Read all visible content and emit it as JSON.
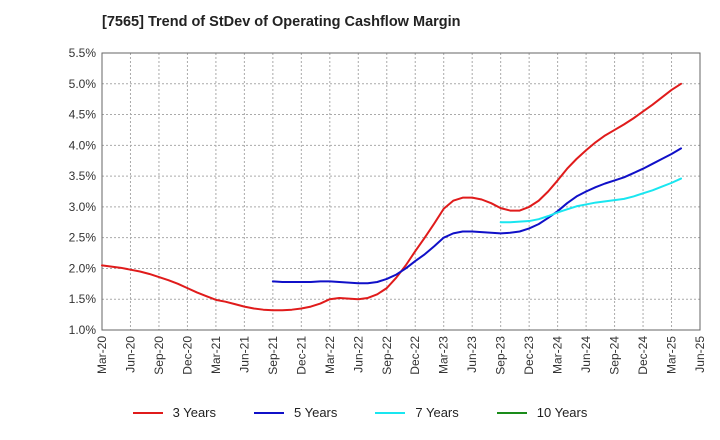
{
  "chart_data": {
    "type": "line",
    "title": "[7565]  Trend of StDev of Operating Cashflow Margin",
    "xlabel": "",
    "ylabel": "",
    "grid": true,
    "legend_position": "bottom",
    "x_tick_labels": [
      "Mar-20",
      "Jun-20",
      "Sep-20",
      "Dec-20",
      "Mar-21",
      "Jun-21",
      "Sep-21",
      "Dec-21",
      "Mar-22",
      "Jun-22",
      "Sep-22",
      "Dec-22",
      "Mar-23",
      "Jun-23",
      "Sep-23",
      "Dec-23",
      "Mar-24",
      "Jun-24",
      "Sep-24",
      "Dec-24",
      "Mar-25",
      "Jun-25"
    ],
    "y_tick_labels": [
      "1.0%",
      "1.5%",
      "2.0%",
      "2.5%",
      "3.0%",
      "3.5%",
      "4.0%",
      "4.5%",
      "5.0%",
      "5.5%"
    ],
    "ylim": [
      1.0,
      5.5
    ],
    "y_ticks": [
      1.0,
      1.5,
      2.0,
      2.5,
      3.0,
      3.5,
      4.0,
      4.5,
      5.0,
      5.5
    ],
    "series": [
      {
        "name": "3 Years",
        "color": "#e01b1b",
        "points": [
          [
            "Mar-20",
            2.05
          ],
          [
            "Apr-20",
            2.03
          ],
          [
            "May-20",
            2.01
          ],
          [
            "Jun-20",
            1.98
          ],
          [
            "Jul-20",
            1.95
          ],
          [
            "Aug-20",
            1.91
          ],
          [
            "Sep-20",
            1.86
          ],
          [
            "Oct-20",
            1.81
          ],
          [
            "Nov-20",
            1.75
          ],
          [
            "Dec-20",
            1.68
          ],
          [
            "Jan-21",
            1.61
          ],
          [
            "Feb-21",
            1.55
          ],
          [
            "Mar-21",
            1.49
          ],
          [
            "Apr-21",
            1.46
          ],
          [
            "May-21",
            1.42
          ],
          [
            "Jun-21",
            1.38
          ],
          [
            "Jul-21",
            1.35
          ],
          [
            "Aug-21",
            1.33
          ],
          [
            "Sep-21",
            1.32
          ],
          [
            "Oct-21",
            1.32
          ],
          [
            "Nov-21",
            1.33
          ],
          [
            "Dec-21",
            1.35
          ],
          [
            "Jan-22",
            1.38
          ],
          [
            "Feb-22",
            1.43
          ],
          [
            "Mar-22",
            1.5
          ],
          [
            "Apr-22",
            1.52
          ],
          [
            "May-22",
            1.51
          ],
          [
            "Jun-22",
            1.5
          ],
          [
            "Jul-22",
            1.52
          ],
          [
            "Aug-22",
            1.58
          ],
          [
            "Sep-22",
            1.68
          ],
          [
            "Oct-22",
            1.85
          ],
          [
            "Nov-22",
            2.05
          ],
          [
            "Dec-22",
            2.28
          ],
          [
            "Jan-23",
            2.5
          ],
          [
            "Feb-23",
            2.73
          ],
          [
            "Mar-23",
            2.97
          ],
          [
            "Apr-23",
            3.1
          ],
          [
            "May-23",
            3.15
          ],
          [
            "Jun-23",
            3.15
          ],
          [
            "Jul-23",
            3.12
          ],
          [
            "Aug-23",
            3.06
          ],
          [
            "Sep-23",
            2.98
          ],
          [
            "Oct-23",
            2.94
          ],
          [
            "Nov-23",
            2.94
          ],
          [
            "Dec-23",
            3.0
          ],
          [
            "Jan-24",
            3.1
          ],
          [
            "Feb-24",
            3.25
          ],
          [
            "Mar-24",
            3.43
          ],
          [
            "Apr-24",
            3.62
          ],
          [
            "May-24",
            3.78
          ],
          [
            "Jun-24",
            3.92
          ],
          [
            "Jul-24",
            4.05
          ],
          [
            "Aug-24",
            4.16
          ],
          [
            "Sep-24",
            4.25
          ],
          [
            "Oct-24",
            4.34
          ],
          [
            "Nov-24",
            4.44
          ],
          [
            "Dec-24",
            4.55
          ],
          [
            "Jan-25",
            4.66
          ],
          [
            "Feb-25",
            4.78
          ],
          [
            "Mar-25",
            4.9
          ],
          [
            "Apr-25",
            5.0
          ]
        ]
      },
      {
        "name": "5 Years",
        "color": "#1010c8",
        "points": [
          [
            "Sep-21",
            1.79
          ],
          [
            "Oct-21",
            1.78
          ],
          [
            "Nov-21",
            1.78
          ],
          [
            "Dec-21",
            1.78
          ],
          [
            "Jan-22",
            1.78
          ],
          [
            "Feb-22",
            1.79
          ],
          [
            "Mar-22",
            1.79
          ],
          [
            "Apr-22",
            1.78
          ],
          [
            "May-22",
            1.77
          ],
          [
            "Jun-22",
            1.76
          ],
          [
            "Jul-22",
            1.76
          ],
          [
            "Aug-22",
            1.78
          ],
          [
            "Sep-22",
            1.83
          ],
          [
            "Oct-22",
            1.9
          ],
          [
            "Nov-22",
            2.0
          ],
          [
            "Dec-22",
            2.12
          ],
          [
            "Jan-23",
            2.23
          ],
          [
            "Feb-23",
            2.36
          ],
          [
            "Mar-23",
            2.5
          ],
          [
            "Apr-23",
            2.57
          ],
          [
            "May-23",
            2.6
          ],
          [
            "Jun-23",
            2.6
          ],
          [
            "Jul-23",
            2.59
          ],
          [
            "Aug-23",
            2.58
          ],
          [
            "Sep-23",
            2.57
          ],
          [
            "Oct-23",
            2.58
          ],
          [
            "Nov-23",
            2.6
          ],
          [
            "Dec-23",
            2.65
          ],
          [
            "Jan-24",
            2.72
          ],
          [
            "Feb-24",
            2.82
          ],
          [
            "Mar-24",
            2.93
          ],
          [
            "Apr-24",
            3.06
          ],
          [
            "May-24",
            3.17
          ],
          [
            "Jun-24",
            3.25
          ],
          [
            "Jul-24",
            3.32
          ],
          [
            "Aug-24",
            3.38
          ],
          [
            "Sep-24",
            3.43
          ],
          [
            "Oct-24",
            3.48
          ],
          [
            "Nov-24",
            3.55
          ],
          [
            "Dec-24",
            3.62
          ],
          [
            "Jan-25",
            3.7
          ],
          [
            "Feb-25",
            3.78
          ],
          [
            "Mar-25",
            3.86
          ],
          [
            "Apr-25",
            3.95
          ]
        ]
      },
      {
        "name": "7 Years",
        "color": "#19e6f0",
        "points": [
          [
            "Sep-23",
            2.75
          ],
          [
            "Oct-23",
            2.75
          ],
          [
            "Nov-23",
            2.76
          ],
          [
            "Dec-23",
            2.77
          ],
          [
            "Jan-24",
            2.8
          ],
          [
            "Feb-24",
            2.85
          ],
          [
            "Mar-24",
            2.91
          ],
          [
            "Apr-24",
            2.96
          ],
          [
            "May-24",
            3.01
          ],
          [
            "Jun-24",
            3.04
          ],
          [
            "Jul-24",
            3.07
          ],
          [
            "Aug-24",
            3.09
          ],
          [
            "Sep-24",
            3.11
          ],
          [
            "Oct-24",
            3.13
          ],
          [
            "Nov-24",
            3.17
          ],
          [
            "Dec-24",
            3.22
          ],
          [
            "Jan-25",
            3.27
          ],
          [
            "Feb-25",
            3.33
          ],
          [
            "Mar-25",
            3.39
          ],
          [
            "Apr-25",
            3.46
          ]
        ]
      },
      {
        "name": "10 Years",
        "color": "#1a8c1a",
        "points": []
      }
    ]
  }
}
